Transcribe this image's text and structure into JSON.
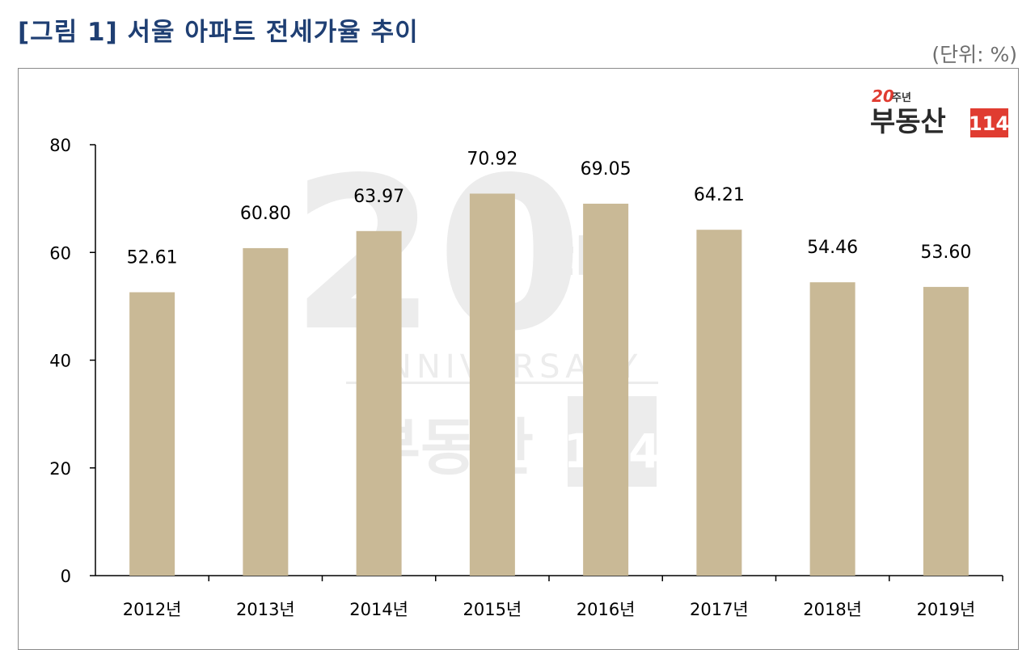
{
  "figure": {
    "title": "[그림 1] 서울 아파트 전세가율 추이",
    "unit": "(단위: %)"
  },
  "watermark": {
    "number": "20",
    "suffix": "th",
    "word": "ANNIVERSARY",
    "brand_text": "부동산",
    "brand_number": "114"
  },
  "logo": {
    "badge_number": "20",
    "badge_text": "주년",
    "brand_text": "부동산",
    "brand_number": "114"
  },
  "colors": {
    "bar": "#c9b996",
    "title": "#1f3f73",
    "logo_red": "#e03c31",
    "watermark": "#ececec"
  },
  "chart_data": {
    "type": "bar",
    "categories": [
      "2012년",
      "2013년",
      "2014년",
      "2015년",
      "2016년",
      "2017년",
      "2018년",
      "2019년"
    ],
    "values": [
      52.61,
      60.8,
      63.97,
      70.92,
      69.05,
      64.21,
      54.46,
      53.6
    ],
    "value_labels": [
      "52.61",
      "60.80",
      "63.97",
      "70.92",
      "69.05",
      "64.21",
      "54.46",
      "53.60"
    ],
    "y_ticks": [
      0,
      20,
      40,
      60,
      80
    ],
    "ylim": [
      0,
      80
    ],
    "title": "서울 아파트 전세가율 추이",
    "xlabel": "",
    "ylabel": "",
    "grid": false,
    "legend": "none"
  }
}
